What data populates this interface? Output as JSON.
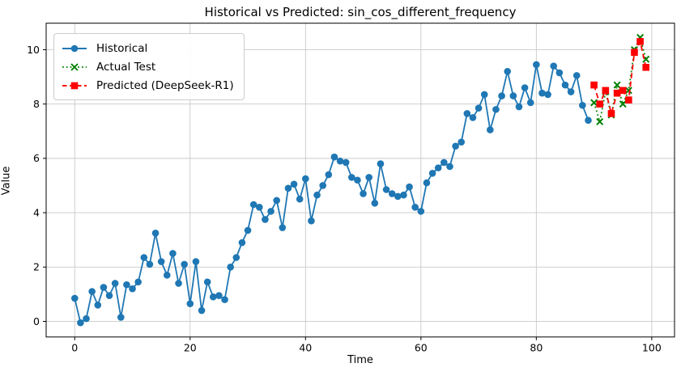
{
  "chart_data": {
    "type": "line",
    "title": "Historical vs Predicted: sin_cos_different_frequency",
    "xlabel": "Time",
    "ylabel": "Value",
    "xlim": [
      -4.95,
      103.95
    ],
    "ylim": [
      -0.575,
      10.975
    ],
    "x_ticks": [
      0,
      20,
      40,
      60,
      80,
      100
    ],
    "y_ticks": [
      0,
      2,
      4,
      6,
      8,
      10
    ],
    "grid": true,
    "legend_position": "upper left",
    "series": [
      {
        "name": "Historical",
        "color": "#1f77b4",
        "line": "solid",
        "marker": "circle",
        "x_start": 0,
        "values": [
          0.85,
          -0.05,
          0.1,
          1.1,
          0.6,
          1.25,
          0.95,
          1.4,
          0.15,
          1.35,
          1.2,
          1.45,
          2.35,
          2.1,
          3.25,
          2.2,
          1.7,
          2.5,
          1.4,
          2.1,
          0.65,
          2.2,
          0.4,
          1.45,
          0.9,
          0.95,
          0.8,
          2.0,
          2.35,
          2.9,
          3.35,
          4.3,
          4.2,
          3.75,
          4.05,
          4.45,
          3.45,
          4.9,
          5.05,
          4.5,
          5.25,
          3.7,
          4.65,
          5.0,
          5.4,
          6.05,
          5.9,
          5.85,
          5.3,
          5.2,
          4.7,
          5.3,
          4.35,
          5.8,
          4.85,
          4.7,
          4.6,
          4.65,
          4.95,
          4.2,
          4.05,
          5.1,
          5.45,
          5.65,
          5.85,
          5.7,
          6.45,
          6.6,
          7.65,
          7.5,
          7.85,
          8.35,
          7.05,
          7.8,
          8.3,
          9.2,
          8.3,
          7.9,
          8.6,
          8.05,
          9.45,
          8.4,
          8.35,
          9.4,
          9.15,
          8.7,
          8.45,
          9.05,
          7.95,
          7.4
        ]
      },
      {
        "name": "Actual Test",
        "color": "#008000",
        "line": "dotted",
        "marker": "x",
        "x_start": 90,
        "values": [
          8.05,
          7.35,
          8.45,
          7.6,
          8.7,
          8.0,
          8.5,
          10.0,
          10.45,
          9.65
        ]
      },
      {
        "name": "Predicted (DeepSeek-R1)",
        "color": "#ff0000",
        "line": "dashed",
        "marker": "square",
        "x_start": 90,
        "values": [
          8.7,
          8.0,
          8.5,
          7.65,
          8.4,
          8.5,
          8.15,
          9.9,
          10.3,
          9.35
        ]
      }
    ]
  }
}
